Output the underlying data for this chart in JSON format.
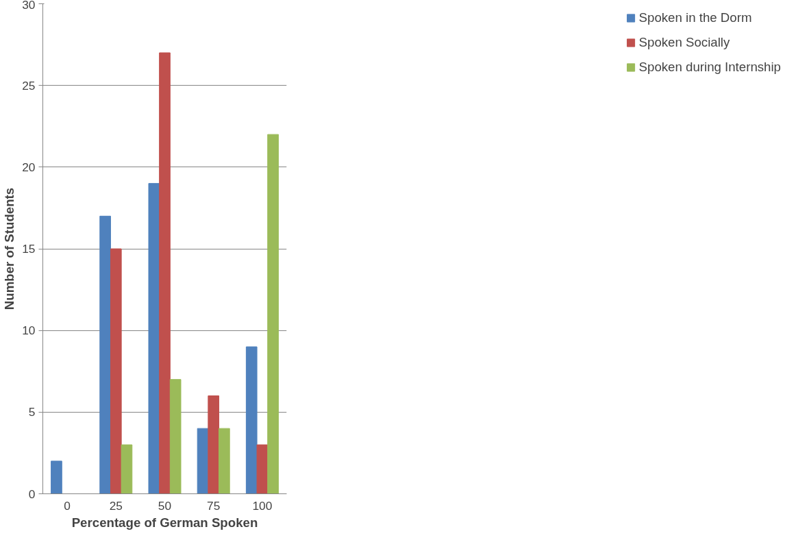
{
  "chart_data": {
    "type": "bar",
    "xlabel": "Percentage of German Spoken",
    "ylabel": "Number of Students",
    "categories": [
      "0",
      "25",
      "50",
      "75",
      "100"
    ],
    "series": [
      {
        "name": "Spoken in the Dorm",
        "color": "#4f81bd",
        "values": [
          2,
          17,
          19,
          4,
          9
        ]
      },
      {
        "name": "Spoken Socially",
        "color": "#c0504d",
        "values": [
          0,
          15,
          27,
          6,
          3
        ]
      },
      {
        "name": "Spoken during Internship",
        "color": "#9bbb59",
        "values": [
          0,
          3,
          7,
          4,
          22
        ]
      }
    ],
    "ylim": [
      0,
      30
    ],
    "yticks": [
      0,
      5,
      10,
      15,
      20,
      25,
      30
    ],
    "grid": "y",
    "legend": "right"
  }
}
